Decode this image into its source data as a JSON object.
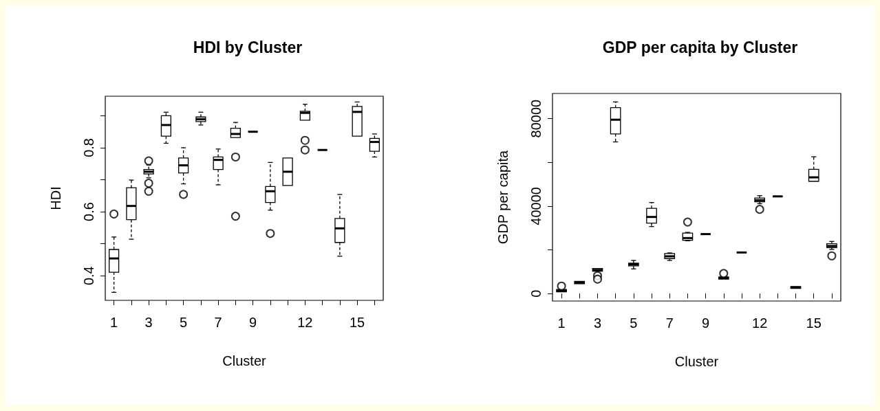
{
  "chart_data": [
    {
      "type": "box",
      "title": "HDI by Cluster",
      "xlabel": "Cluster",
      "ylabel": "HDI",
      "categories": [
        "1",
        null,
        "3",
        null,
        "5",
        null,
        "7",
        null,
        "9",
        null,
        null,
        "12",
        null,
        null,
        "15",
        null
      ],
      "ylim": [
        0.323,
        0.961
      ],
      "yticks": [
        0.4,
        {
          "value": 0.5,
          "label": null
        },
        0.6,
        {
          "value": 0.7,
          "label": null
        },
        0.8,
        {
          "value": 0.9,
          "label": null
        }
      ],
      "grid": false,
      "boxes": [
        {
          "low": 0.348,
          "q1": 0.411,
          "median": 0.454,
          "q3": 0.482,
          "high": 0.521,
          "outliers": [
            0.593
          ]
        },
        {
          "low": 0.514,
          "q1": 0.575,
          "median": 0.618,
          "q3": 0.675,
          "high": 0.699
        },
        {
          "low": 0.706,
          "q1": 0.718,
          "median": 0.725,
          "q3": 0.732,
          "high": 0.746,
          "outliers": [
            0.759,
            0.689,
            0.664
          ]
        },
        {
          "low": 0.814,
          "q1": 0.836,
          "median": 0.871,
          "q3": 0.9,
          "high": 0.911
        },
        {
          "low": 0.687,
          "q1": 0.721,
          "median": 0.745,
          "q3": 0.768,
          "high": 0.8,
          "outliers": [
            0.654
          ]
        },
        {
          "low": 0.871,
          "q1": 0.882,
          "median": 0.889,
          "q3": 0.896,
          "high": 0.911
        },
        {
          "low": 0.684,
          "q1": 0.732,
          "median": 0.762,
          "q3": 0.771,
          "high": 0.796
        },
        {
          "low": 0.832,
          "q1": 0.832,
          "median": 0.843,
          "q3": 0.861,
          "high": 0.879,
          "outliers": [
            0.771,
            0.586
          ]
        },
        {
          "low": 0.85,
          "q1": 0.85,
          "median": 0.85,
          "q3": 0.85,
          "high": 0.85
        },
        {
          "low": 0.605,
          "q1": 0.629,
          "median": 0.664,
          "q3": 0.679,
          "high": 0.754,
          "outliers": [
            0.532
          ]
        },
        {
          "low": 0.682,
          "q1": 0.682,
          "median": 0.725,
          "q3": 0.768,
          "high": 0.768
        },
        {
          "low": 0.886,
          "q1": 0.886,
          "median": 0.909,
          "q3": 0.914,
          "high": 0.936,
          "outliers": [
            0.823,
            0.793
          ]
        },
        {
          "low": 0.793,
          "q1": 0.793,
          "median": 0.793,
          "q3": 0.793,
          "high": 0.793
        },
        {
          "low": 0.461,
          "q1": 0.504,
          "median": 0.548,
          "q3": 0.579,
          "high": 0.654
        },
        {
          "low": 0.836,
          "q1": 0.836,
          "median": 0.912,
          "q3": 0.929,
          "high": 0.943
        },
        {
          "low": 0.771,
          "q1": 0.789,
          "median": 0.818,
          "q3": 0.829,
          "high": 0.843
        }
      ]
    },
    {
      "type": "box",
      "title": "GDP per capita by Cluster",
      "xlabel": "Cluster",
      "ylabel": "GDP per capita",
      "categories": [
        "1",
        null,
        "3",
        null,
        "5",
        null,
        "7",
        null,
        "9",
        null,
        null,
        "12",
        null,
        null,
        "15",
        null
      ],
      "ylim": [
        -3400,
        91500
      ],
      "yticks": [
        0,
        {
          "value": 20000,
          "label": null
        },
        40000,
        {
          "value": 60000,
          "label": null
        },
        80000
      ],
      "grid": false,
      "boxes": [
        {
          "low": 840,
          "q1": 840,
          "median": 1360,
          "q3": 1880,
          "high": 1880,
          "outliers": [
            3450
          ]
        },
        {
          "low": 4500,
          "q1": 4500,
          "median": 5000,
          "q3": 5550,
          "high": 5550
        },
        {
          "low": 10250,
          "q1": 10250,
          "median": 10800,
          "q3": 11500,
          "high": 11500,
          "outliers": [
            8160,
            6600
          ]
        },
        {
          "low": 69350,
          "q1": 73000,
          "median": 79500,
          "q3": 85000,
          "high": 87650
        },
        {
          "low": 11300,
          "q1": 12650,
          "median": 13400,
          "q3": 13900,
          "high": 15170
        },
        {
          "low": 30650,
          "q1": 32200,
          "median": 35040,
          "q3": 39000,
          "high": 41630
        },
        {
          "low": 15170,
          "q1": 16000,
          "median": 17050,
          "q3": 18300,
          "high": 18600
        },
        {
          "low": 24160,
          "q1": 24400,
          "median": 25400,
          "q3": 27700,
          "high": 28000,
          "outliers": [
            32700
          ]
        },
        {
          "low": 27200,
          "q1": 27200,
          "median": 27200,
          "q3": 27200,
          "high": 27200
        },
        {
          "low": 6600,
          "q1": 6600,
          "median": 7100,
          "q3": 7640,
          "high": 7640,
          "outliers": [
            9200
          ]
        },
        {
          "low": 18800,
          "q1": 18800,
          "median": 18800,
          "q3": 18800,
          "high": 18800
        },
        {
          "low": 41100,
          "q1": 41950,
          "median": 42700,
          "q3": 43700,
          "high": 44770,
          "outliers": [
            38500
          ]
        },
        {
          "low": 44450,
          "q1": 44450,
          "median": 44450,
          "q3": 44450,
          "high": 44450
        },
        {
          "low": 2400,
          "q1": 2400,
          "median": 2800,
          "q3": 3240,
          "high": 3240
        },
        {
          "low": 51350,
          "q1": 51350,
          "median": 53150,
          "q3": 56800,
          "high": 62550
        },
        {
          "low": 20190,
          "q1": 21030,
          "median": 21760,
          "q3": 22800,
          "high": 23850,
          "outliers": [
            17260
          ]
        }
      ]
    }
  ]
}
